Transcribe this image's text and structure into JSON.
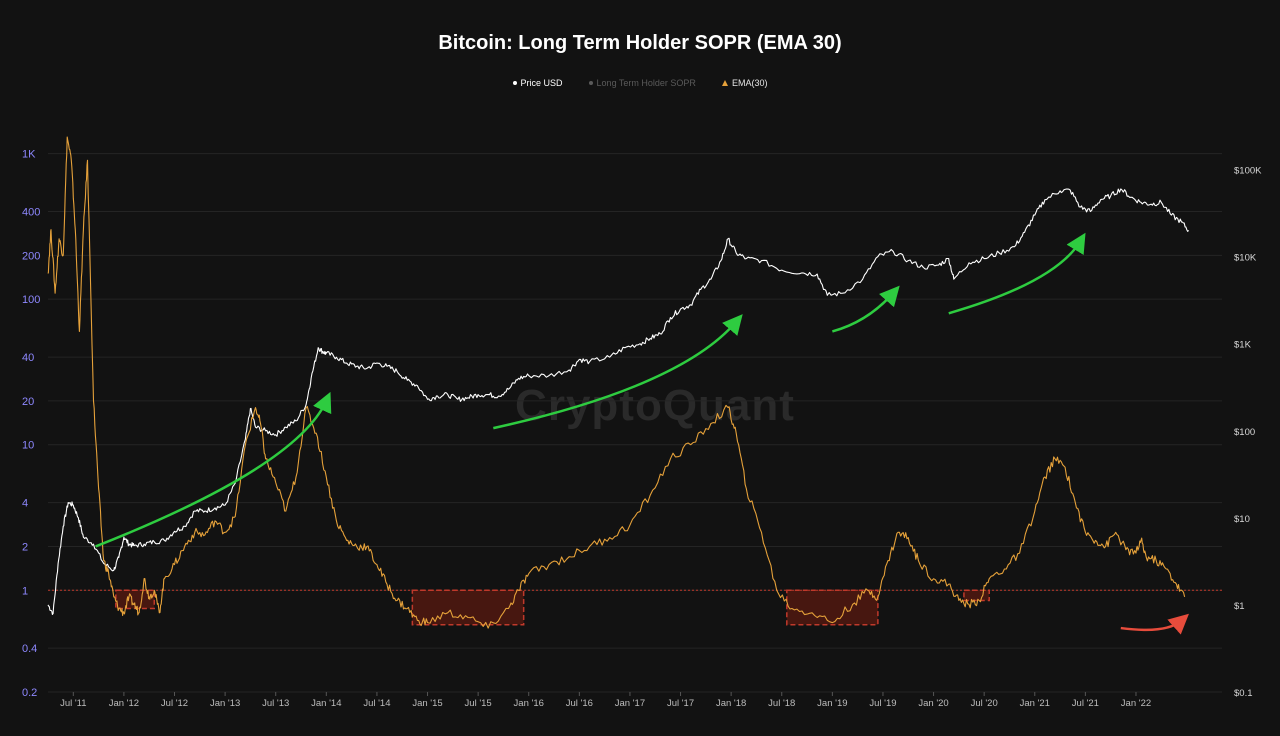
{
  "chart_data": {
    "type": "line",
    "title": "Bitcoin: Long Term Holder SOPR (EMA 30)",
    "watermark": "CryptoQuant",
    "legend": [
      {
        "label": "Price USD",
        "color": "#ffffff",
        "marker": "dot"
      },
      {
        "label": "Long Term Holder SOPR",
        "color": "#5a5a5a",
        "marker": "dot"
      },
      {
        "label": "EMA(30)",
        "color": "#e5a13a",
        "marker": "triangle"
      }
    ],
    "left_axis": {
      "scale": "log",
      "range": [
        0.2,
        1500
      ],
      "ticks": [
        {
          "value": 0.2,
          "label": "0.2"
        },
        {
          "value": 0.4,
          "label": "0.4"
        },
        {
          "value": 1,
          "label": "1"
        },
        {
          "value": 2,
          "label": "2"
        },
        {
          "value": 4,
          "label": "4"
        },
        {
          "value": 10,
          "label": "10"
        },
        {
          "value": 20,
          "label": "20"
        },
        {
          "value": 40,
          "label": "40"
        },
        {
          "value": 100,
          "label": "100"
        },
        {
          "value": 200,
          "label": "200"
        },
        {
          "value": 400,
          "label": "400"
        },
        {
          "value": 1000,
          "label": "1K"
        }
      ],
      "color": "#8e88ff"
    },
    "right_axis": {
      "scale": "log",
      "range": [
        0.1,
        300000
      ],
      "ticks": [
        {
          "value": 0.1,
          "label": "$0.1"
        },
        {
          "value": 1,
          "label": "$1"
        },
        {
          "value": 10,
          "label": "$10"
        },
        {
          "value": 100,
          "label": "$100"
        },
        {
          "value": 1000,
          "label": "$1K"
        },
        {
          "value": 10000,
          "label": "$10K"
        },
        {
          "value": 100000,
          "label": "$100K"
        }
      ]
    },
    "x_axis": {
      "range": [
        2011.25,
        2022.85
      ],
      "ticks": [
        {
          "value": 2011.5,
          "label": "Jul '11"
        },
        {
          "value": 2012.0,
          "label": "Jan '12"
        },
        {
          "value": 2012.5,
          "label": "Jul '12"
        },
        {
          "value": 2013.0,
          "label": "Jan '13"
        },
        {
          "value": 2013.5,
          "label": "Jul '13"
        },
        {
          "value": 2014.0,
          "label": "Jan '14"
        },
        {
          "value": 2014.5,
          "label": "Jul '14"
        },
        {
          "value": 2015.0,
          "label": "Jan '15"
        },
        {
          "value": 2015.5,
          "label": "Jul '15"
        },
        {
          "value": 2016.0,
          "label": "Jan '16"
        },
        {
          "value": 2016.5,
          "label": "Jul '16"
        },
        {
          "value": 2017.0,
          "label": "Jan '17"
        },
        {
          "value": 2017.5,
          "label": "Jul '17"
        },
        {
          "value": 2018.0,
          "label": "Jan '18"
        },
        {
          "value": 2018.5,
          "label": "Jul '18"
        },
        {
          "value": 2019.0,
          "label": "Jan '19"
        },
        {
          "value": 2019.5,
          "label": "Jul '19"
        },
        {
          "value": 2020.0,
          "label": "Jan '20"
        },
        {
          "value": 2020.5,
          "label": "Jul '20"
        },
        {
          "value": 2021.0,
          "label": "Jan '21"
        },
        {
          "value": 2021.5,
          "label": "Jul '21"
        },
        {
          "value": 2022.0,
          "label": "Jan '22"
        }
      ]
    },
    "grid": true,
    "reference_line": {
      "axis": "left",
      "value": 1,
      "color": "#c0392b",
      "style": "dotted"
    },
    "series": [
      {
        "name": "Price USD",
        "axis": "right",
        "color": "#ffffff",
        "x": [
          2011.25,
          2011.3,
          2011.35,
          2011.4,
          2011.45,
          2011.5,
          2011.55,
          2011.6,
          2011.7,
          2011.8,
          2011.9,
          2011.95,
          2012.0,
          2012.05,
          2012.1,
          2012.2,
          2012.3,
          2012.4,
          2012.5,
          2012.6,
          2012.7,
          2012.8,
          2012.9,
          2013.0,
          2013.1,
          2013.2,
          2013.25,
          2013.3,
          2013.4,
          2013.5,
          2013.6,
          2013.7,
          2013.8,
          2013.85,
          2013.92,
          2013.97,
          2014.0,
          2014.1,
          2014.2,
          2014.3,
          2014.4,
          2014.5,
          2014.6,
          2014.7,
          2014.8,
          2014.9,
          2015.0,
          2015.1,
          2015.2,
          2015.3,
          2015.4,
          2015.5,
          2015.6,
          2015.7,
          2015.8,
          2015.9,
          2016.0,
          2016.2,
          2016.4,
          2016.5,
          2016.6,
          2016.8,
          2016.95,
          2017.1,
          2017.2,
          2017.3,
          2017.4,
          2017.5,
          2017.6,
          2017.7,
          2017.8,
          2017.9,
          2017.97,
          2018.05,
          2018.15,
          2018.3,
          2018.5,
          2018.7,
          2018.85,
          2018.95,
          2019.1,
          2019.3,
          2019.45,
          2019.6,
          2019.75,
          2019.9,
          2020.05,
          2020.15,
          2020.2,
          2020.35,
          2020.5,
          2020.65,
          2020.8,
          2020.9,
          2021.0,
          2021.1,
          2021.25,
          2021.35,
          2021.45,
          2021.55,
          2021.65,
          2021.75,
          2021.85,
          2021.95,
          2022.05,
          2022.15,
          2022.25,
          2022.35,
          2022.45,
          2022.52
        ],
        "y": [
          1.0,
          0.8,
          3.0,
          8.0,
          15.0,
          14.0,
          10.0,
          6.0,
          5.0,
          3.0,
          2.5,
          3.5,
          6.0,
          5.0,
          4.8,
          5.0,
          5.3,
          5.5,
          7.0,
          8.0,
          12.0,
          12.0,
          13.0,
          14.0,
          25.0,
          80.0,
          180.0,
          110.0,
          100.0,
          90.0,
          110.0,
          130.0,
          200.0,
          400.0,
          900.0,
          800.0,
          780.0,
          700.0,
          600.0,
          550.0,
          520.0,
          600.0,
          550.0,
          480.0,
          380.0,
          330.0,
          230.0,
          250.0,
          260.0,
          230.0,
          240.0,
          260.0,
          260.0,
          250.0,
          300.0,
          400.0,
          430.0,
          430.0,
          500.0,
          660.0,
          620.0,
          700.0,
          900.0,
          1000.0,
          1150.0,
          1300.0,
          2000.0,
          2500.0,
          2800.0,
          4200.0,
          5500.0,
          9000.0,
          16000.0,
          11000.0,
          9500.0,
          9000.0,
          7000.0,
          6500.0,
          6300.0,
          3600.0,
          3800.0,
          5500.0,
          10000.0,
          11500.0,
          9000.0,
          7500.0,
          8000.0,
          9500.0,
          5500.0,
          8500.0,
          9500.0,
          11000.0,
          13000.0,
          19000.0,
          30000.0,
          45000.0,
          57000.0,
          58000.0,
          37000.0,
          33000.0,
          45000.0,
          50000.0,
          60000.0,
          48000.0,
          42000.0,
          40000.0,
          42000.0,
          30000.0,
          25000.0,
          20000.0
        ]
      },
      {
        "name": "EMA(30)",
        "axis": "left",
        "color": "#e5a13a",
        "x": [
          2011.25,
          2011.28,
          2011.32,
          2011.36,
          2011.4,
          2011.44,
          2011.48,
          2011.52,
          2011.56,
          2011.6,
          2011.64,
          2011.7,
          2011.75,
          2011.8,
          2011.85,
          2011.9,
          2011.95,
          2012.0,
          2012.05,
          2012.1,
          2012.15,
          2012.2,
          2012.25,
          2012.3,
          2012.35,
          2012.4,
          2012.5,
          2012.6,
          2012.7,
          2012.8,
          2012.9,
          2013.0,
          2013.1,
          2013.2,
          2013.3,
          2013.35,
          2013.4,
          2013.5,
          2013.6,
          2013.7,
          2013.8,
          2013.9,
          2014.0,
          2014.1,
          2014.2,
          2014.3,
          2014.4,
          2014.5,
          2014.6,
          2014.7,
          2014.8,
          2014.9,
          2015.0,
          2015.2,
          2015.4,
          2015.6,
          2015.8,
          2015.9,
          2016.0,
          2016.2,
          2016.4,
          2016.6,
          2016.8,
          2017.0,
          2017.2,
          2017.4,
          2017.6,
          2017.8,
          2017.97,
          2018.05,
          2018.15,
          2018.3,
          2018.45,
          2018.6,
          2018.8,
          2019.0,
          2019.2,
          2019.35,
          2019.45,
          2019.55,
          2019.65,
          2019.75,
          2019.85,
          2020.0,
          2020.15,
          2020.25,
          2020.35,
          2020.45,
          2020.55,
          2020.7,
          2020.85,
          2021.0,
          2021.1,
          2021.2,
          2021.3,
          2021.4,
          2021.5,
          2021.6,
          2021.7,
          2021.8,
          2021.9,
          2022.0,
          2022.05,
          2022.1,
          2022.2,
          2022.3,
          2022.4,
          2022.48
        ],
        "y": [
          150.0,
          300.0,
          110.0,
          260.0,
          200.0,
          1300.0,
          900.0,
          300.0,
          60.0,
          300.0,
          900.0,
          20.0,
          5.0,
          1.6,
          1.3,
          0.9,
          0.75,
          0.7,
          0.9,
          0.8,
          0.7,
          1.2,
          0.9,
          1.0,
          0.7,
          1.2,
          1.5,
          2.0,
          2.5,
          2.4,
          3.0,
          2.5,
          3.2,
          10.0,
          18.0,
          14.0,
          8.0,
          5.5,
          3.5,
          6.0,
          18.0,
          12.0,
          6.0,
          3.0,
          2.2,
          2.0,
          2.0,
          1.5,
          1.1,
          0.85,
          0.75,
          0.62,
          0.6,
          0.7,
          0.65,
          0.55,
          0.75,
          1.0,
          1.3,
          1.5,
          1.7,
          2.0,
          2.3,
          2.8,
          4.5,
          8.0,
          10.0,
          14.0,
          18.0,
          12.0,
          5.0,
          2.5,
          1.0,
          0.75,
          0.7,
          0.6,
          0.8,
          1.0,
          0.9,
          1.6,
          2.5,
          2.3,
          1.6,
          1.2,
          1.1,
          0.85,
          0.8,
          0.85,
          1.2,
          1.4,
          1.8,
          3.5,
          6.0,
          8.0,
          7.0,
          4.0,
          2.5,
          2.2,
          2.0,
          2.5,
          1.9,
          1.8,
          2.2,
          1.7,
          1.6,
          1.4,
          1.1,
          0.9
        ]
      }
    ],
    "highlight_regions": [
      {
        "x_start": 2011.92,
        "x_end": 2012.3,
        "y_low": 0.75,
        "y_high": 1.0,
        "color": "#c0392b"
      },
      {
        "x_start": 2014.85,
        "x_end": 2015.95,
        "y_low": 0.58,
        "y_high": 1.0,
        "color": "#c0392b"
      },
      {
        "x_start": 2018.55,
        "x_end": 2019.45,
        "y_low": 0.58,
        "y_high": 1.0,
        "color": "#c0392b"
      },
      {
        "x_start": 2020.3,
        "x_end": 2020.55,
        "y_low": 0.85,
        "y_high": 1.0,
        "color": "#c0392b"
      }
    ],
    "arrows": [
      {
        "color": "#2ecc40",
        "points": [
          [
            2011.72,
            2.0
          ],
          [
            2013.7,
            7.0
          ],
          [
            2014.0,
            20.0
          ]
        ]
      },
      {
        "color": "#2ecc40",
        "points": [
          [
            2015.65,
            13.0
          ],
          [
            2017.5,
            25.0
          ],
          [
            2018.05,
            70.0
          ]
        ]
      },
      {
        "color": "#2ecc40",
        "points": [
          [
            2019.0,
            60.0
          ],
          [
            2019.35,
            70.0
          ],
          [
            2019.6,
            110.0
          ]
        ]
      },
      {
        "color": "#2ecc40",
        "points": [
          [
            2020.15,
            80.0
          ],
          [
            2021.2,
            130.0
          ],
          [
            2021.45,
            250.0
          ]
        ]
      },
      {
        "color": "#e74c3c",
        "points": [
          [
            2021.85,
            0.55
          ],
          [
            2022.3,
            0.5
          ],
          [
            2022.45,
            0.62
          ]
        ]
      }
    ]
  }
}
